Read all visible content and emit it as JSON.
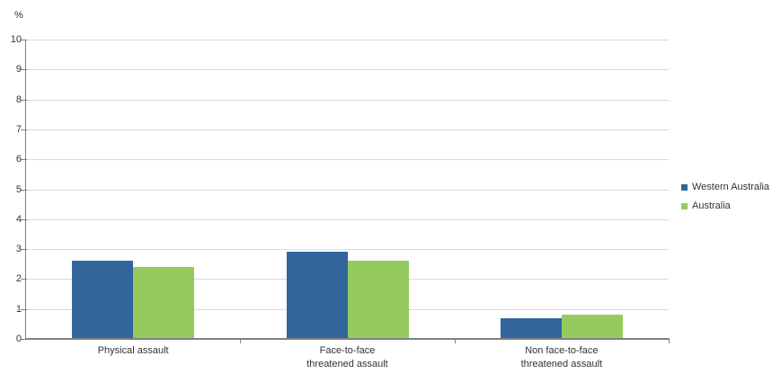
{
  "chart_data": {
    "type": "bar",
    "title": "",
    "ylabel": "%",
    "categories": [
      "Physical assault",
      "Face-to-face\nthreatened assault",
      "Non face-to-face\nthreatened assault"
    ],
    "series": [
      {
        "name": "Western Australia",
        "color": "#31659B",
        "values": [
          2.6,
          2.9,
          0.7
        ]
      },
      {
        "name": "Australia",
        "color": "#95CB5E",
        "values": [
          2.4,
          2.6,
          0.8
        ]
      }
    ],
    "y_axis": {
      "min": 0,
      "max": 10,
      "step": 1,
      "tick_labels": [
        "0",
        "1",
        "2",
        "3",
        "4",
        "5",
        "6",
        "7",
        "8",
        "9",
        "10"
      ]
    },
    "grid": true,
    "legend_position": "right",
    "colors": {
      "gridline": "#D9D9D9",
      "axis": "#808080",
      "text": "#333333",
      "background": "#FFFFFF"
    }
  }
}
